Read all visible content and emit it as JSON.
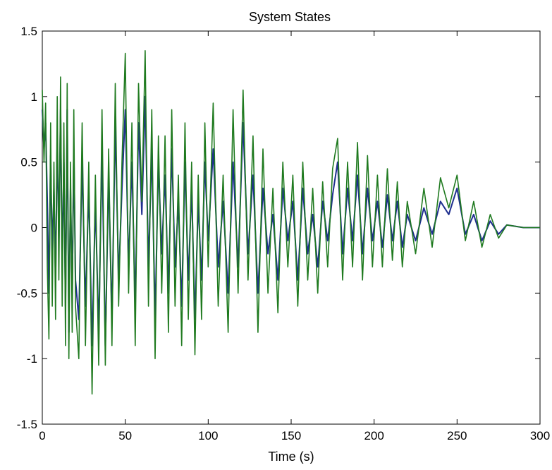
{
  "chart_data": {
    "type": "line",
    "title": "System States",
    "xlabel": "Time (s)",
    "ylabel": "",
    "xlim": [
      0,
      300
    ],
    "ylim": [
      -1.5,
      1.5
    ],
    "xticks": [
      0,
      50,
      100,
      150,
      200,
      250,
      300
    ],
    "yticks": [
      -1.5,
      -1,
      -0.5,
      0,
      0.5,
      1,
      1.5
    ],
    "xtick_labels": [
      "0",
      "50",
      "100",
      "150",
      "200",
      "250",
      "300"
    ],
    "ytick_labels": [
      "-1.5",
      "-1",
      "-0.5",
      "0",
      "0.5",
      "1",
      "1.5"
    ],
    "grid": false,
    "legend": "none",
    "colors": {
      "series_1": "#1f2f8f",
      "series_2": "#1f7a1f"
    },
    "series": [
      {
        "x": [
          0,
          1,
          2,
          3,
          4,
          5,
          6,
          7,
          8,
          9,
          10,
          11,
          12,
          13,
          14,
          15,
          16,
          17,
          18,
          19,
          20,
          22,
          24,
          26,
          28,
          30,
          32,
          34,
          36,
          38,
          40,
          42,
          44,
          46,
          48,
          50,
          52,
          54,
          56,
          58,
          60,
          62,
          64,
          66,
          68,
          70,
          72,
          74,
          76,
          78,
          80,
          82,
          84,
          86,
          88,
          90,
          92,
          94,
          96,
          98,
          100,
          103,
          106,
          109,
          112,
          115,
          118,
          121,
          124,
          127,
          130,
          133,
          136,
          139,
          142,
          145,
          148,
          151,
          154,
          157,
          160,
          163,
          166,
          169,
          172,
          175,
          178,
          181,
          184,
          187,
          190,
          193,
          196,
          199,
          202,
          205,
          208,
          211,
          214,
          217,
          220,
          225,
          230,
          235,
          240,
          245,
          250,
          255,
          260,
          265,
          270,
          275,
          280,
          285,
          290,
          295,
          300
        ],
        "y": [
          0.9,
          0.6,
          0.8,
          0.2,
          -0.5,
          0.55,
          -0.2,
          0.3,
          -0.4,
          0.7,
          -0.1,
          0.9,
          -0.3,
          0.5,
          -0.6,
          0.9,
          -0.8,
          0.3,
          -0.5,
          0.6,
          -0.4,
          -0.7,
          0.5,
          -0.6,
          0.3,
          -0.9,
          0.2,
          -0.8,
          0.6,
          -0.9,
          0.4,
          -0.7,
          0.8,
          -0.4,
          0.3,
          0.9,
          -0.3,
          0.5,
          -0.6,
          0.8,
          0.1,
          1.0,
          -0.3,
          0.6,
          -0.7,
          0.5,
          -0.2,
          0.4,
          -0.5,
          0.6,
          -0.3,
          0.2,
          -0.6,
          0.5,
          -0.4,
          0.3,
          -0.7,
          0.2,
          -0.4,
          0.5,
          -0.1,
          0.6,
          -0.3,
          0.2,
          -0.5,
          0.5,
          -0.3,
          0.8,
          -0.2,
          0.4,
          -0.5,
          0.3,
          -0.2,
          0.1,
          -0.4,
          0.3,
          -0.1,
          0.2,
          -0.4,
          0.3,
          -0.2,
          0.1,
          -0.3,
          0.2,
          -0.1,
          0.25,
          0.5,
          -0.2,
          0.3,
          -0.1,
          0.4,
          -0.2,
          0.3,
          -0.1,
          0.2,
          -0.15,
          0.25,
          -0.1,
          0.2,
          -0.15,
          0.1,
          -0.1,
          0.15,
          -0.05,
          0.2,
          0.1,
          0.3,
          -0.05,
          0.1,
          -0.1,
          0.05,
          -0.05,
          0.02,
          0.01,
          0.0,
          0.0,
          0.0
        ]
      },
      {
        "x": [
          0,
          1,
          2,
          3,
          4,
          5,
          6,
          7,
          8,
          9,
          10,
          11,
          12,
          13,
          14,
          15,
          16,
          17,
          18,
          19,
          20,
          22,
          24,
          26,
          28,
          30,
          32,
          34,
          36,
          38,
          40,
          42,
          44,
          46,
          48,
          50,
          52,
          54,
          56,
          58,
          60,
          62,
          64,
          66,
          68,
          70,
          72,
          74,
          76,
          78,
          80,
          82,
          84,
          86,
          88,
          90,
          92,
          94,
          96,
          98,
          100,
          103,
          106,
          109,
          112,
          115,
          118,
          121,
          124,
          127,
          130,
          133,
          136,
          139,
          142,
          145,
          148,
          151,
          154,
          157,
          160,
          163,
          166,
          169,
          172,
          175,
          178,
          181,
          184,
          187,
          190,
          193,
          196,
          199,
          202,
          205,
          208,
          211,
          214,
          217,
          220,
          225,
          230,
          235,
          240,
          245,
          250,
          255,
          260,
          265,
          270,
          275,
          280,
          285,
          290,
          295,
          300
        ],
        "y": [
          1.05,
          0.5,
          0.95,
          -0.3,
          -0.85,
          0.8,
          -0.6,
          0.5,
          -0.7,
          1.0,
          -0.4,
          1.15,
          -0.6,
          0.8,
          -0.9,
          1.1,
          -1.0,
          0.5,
          -0.8,
          0.9,
          -0.6,
          -1.0,
          0.8,
          -0.9,
          0.5,
          -1.27,
          0.4,
          -1.05,
          0.9,
          -1.05,
          0.6,
          -0.9,
          1.1,
          -0.6,
          0.5,
          1.33,
          -0.5,
          0.8,
          -0.9,
          1.1,
          0.2,
          1.35,
          -0.6,
          0.9,
          -1.0,
          0.7,
          -0.5,
          0.7,
          -0.8,
          0.9,
          -0.6,
          0.4,
          -0.9,
          0.8,
          -0.7,
          0.5,
          -0.97,
          0.4,
          -0.7,
          0.8,
          -0.3,
          0.95,
          -0.6,
          0.4,
          -0.8,
          0.9,
          -0.5,
          1.05,
          -0.4,
          0.7,
          -0.8,
          0.6,
          -0.5,
          0.3,
          -0.65,
          0.5,
          -0.3,
          0.4,
          -0.6,
          0.5,
          -0.4,
          0.3,
          -0.5,
          0.35,
          -0.3,
          0.45,
          0.68,
          -0.4,
          0.5,
          -0.3,
          0.65,
          -0.4,
          0.55,
          -0.3,
          0.4,
          -0.3,
          0.45,
          -0.25,
          0.35,
          -0.3,
          0.2,
          -0.2,
          0.3,
          -0.15,
          0.38,
          0.15,
          0.4,
          -0.1,
          0.2,
          -0.15,
          0.1,
          -0.08,
          0.02,
          0.01,
          0.0,
          0.0,
          0.0
        ]
      }
    ]
  }
}
